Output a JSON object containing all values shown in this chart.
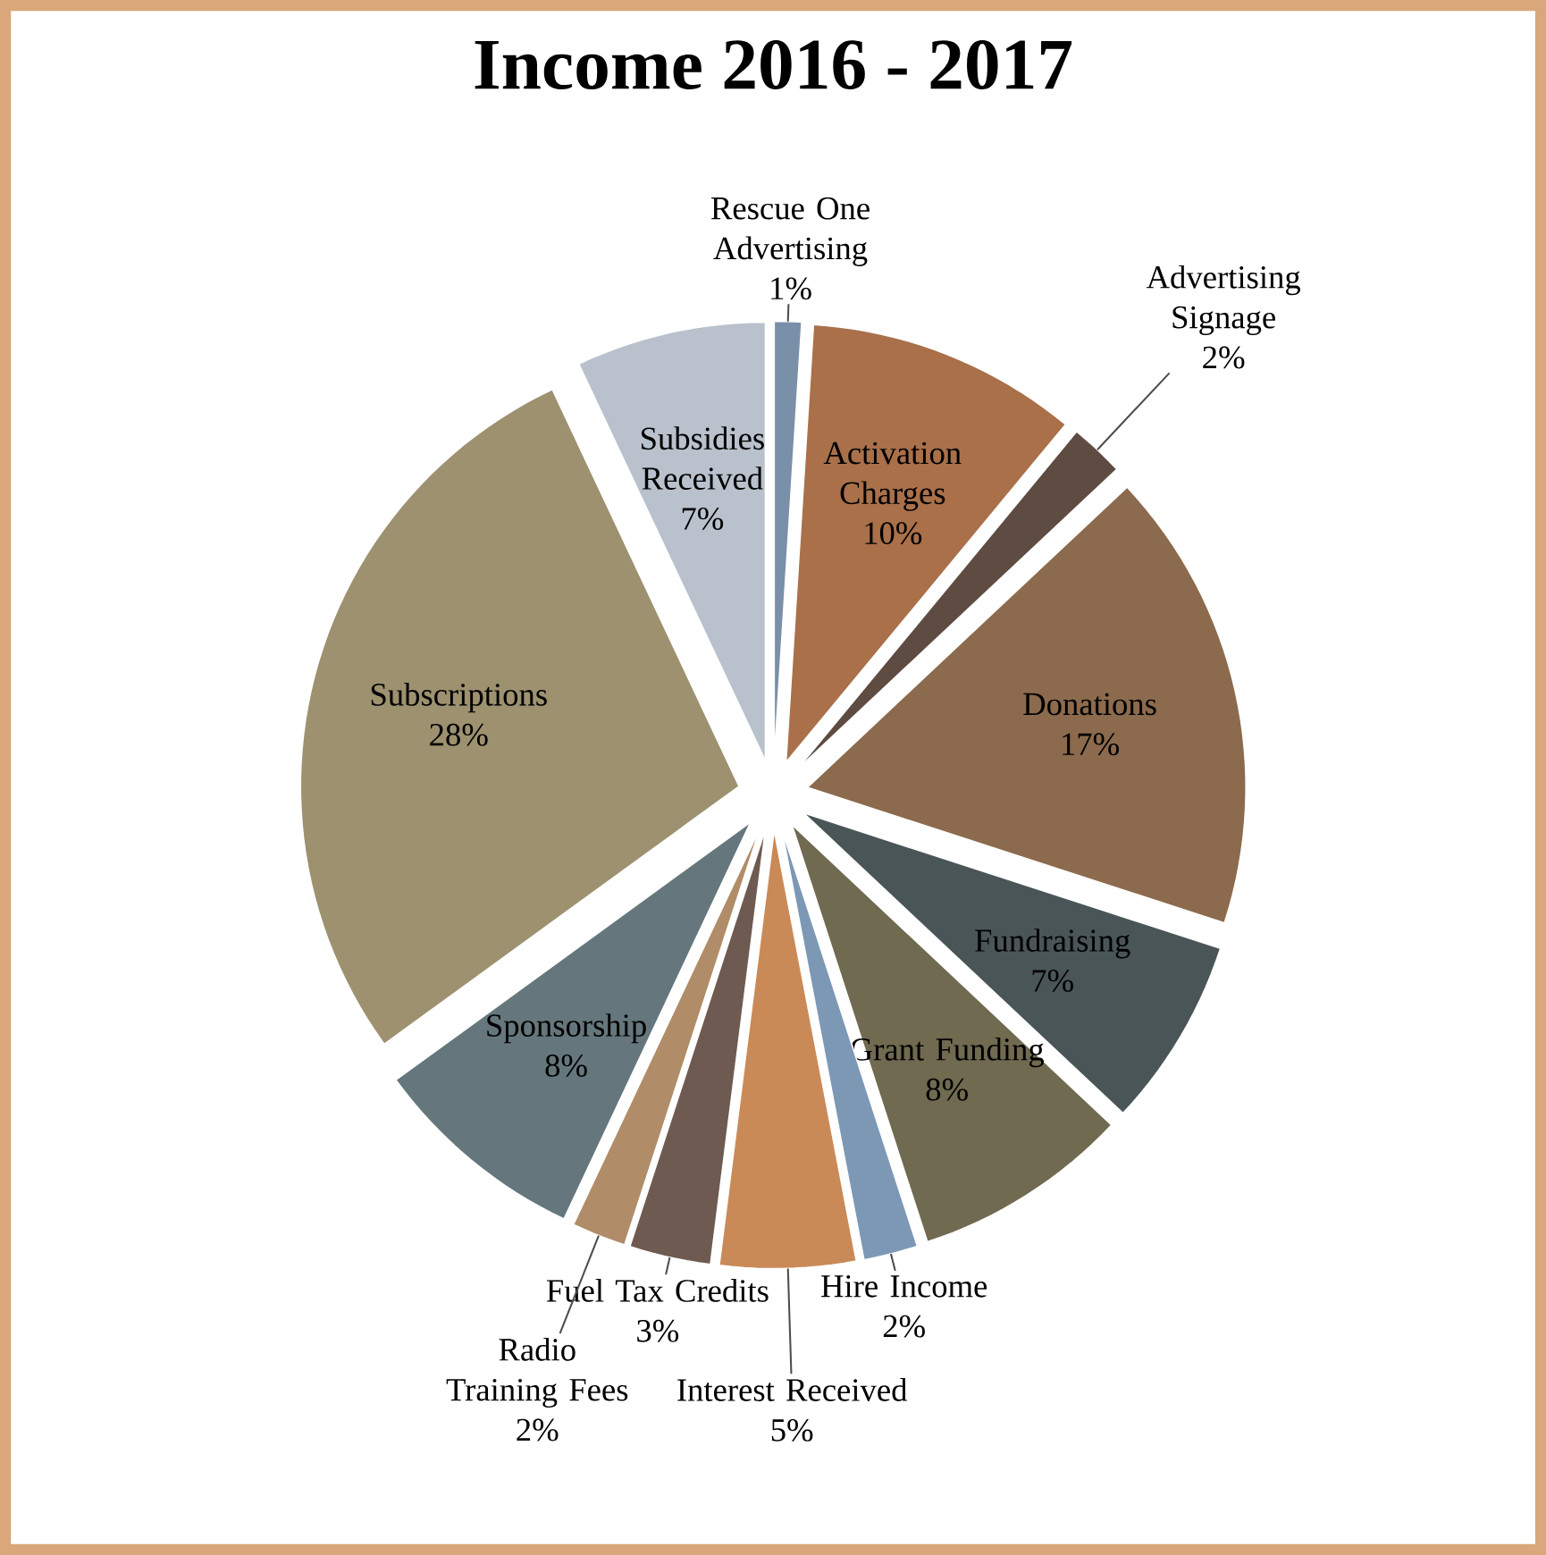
{
  "chart_data": {
    "type": "pie",
    "title": "Income 2016 - 2017",
    "categories": [
      "Rescue One Advertising",
      "Activation Charges",
      "Advertising Signage",
      "Donations",
      "Fundraising",
      "Grant Funding",
      "Hire Income",
      "Interest Received",
      "Fuel Tax Credits",
      "Radio Training Fees",
      "Sponsorship",
      "Subscriptions",
      "Subsidies Received"
    ],
    "values": [
      1,
      10,
      2,
      17,
      7,
      8,
      2,
      5,
      3,
      2,
      8,
      28,
      7
    ],
    "value_labels": [
      "1%",
      "10%",
      "2%",
      "17%",
      "7%",
      "8%",
      "2%",
      "5%",
      "3%",
      "2%",
      "8%",
      "28%",
      "7%"
    ],
    "colors": [
      "#7a8fa8",
      "#a9704a",
      "#5e4b42",
      "#8c6a4d",
      "#4a5558",
      "#6f6a50",
      "#7c98b5",
      "#c98a58",
      "#6e5a50",
      "#b08c68",
      "#65777c",
      "#9d9170",
      "#b8c1cc"
    ]
  }
}
